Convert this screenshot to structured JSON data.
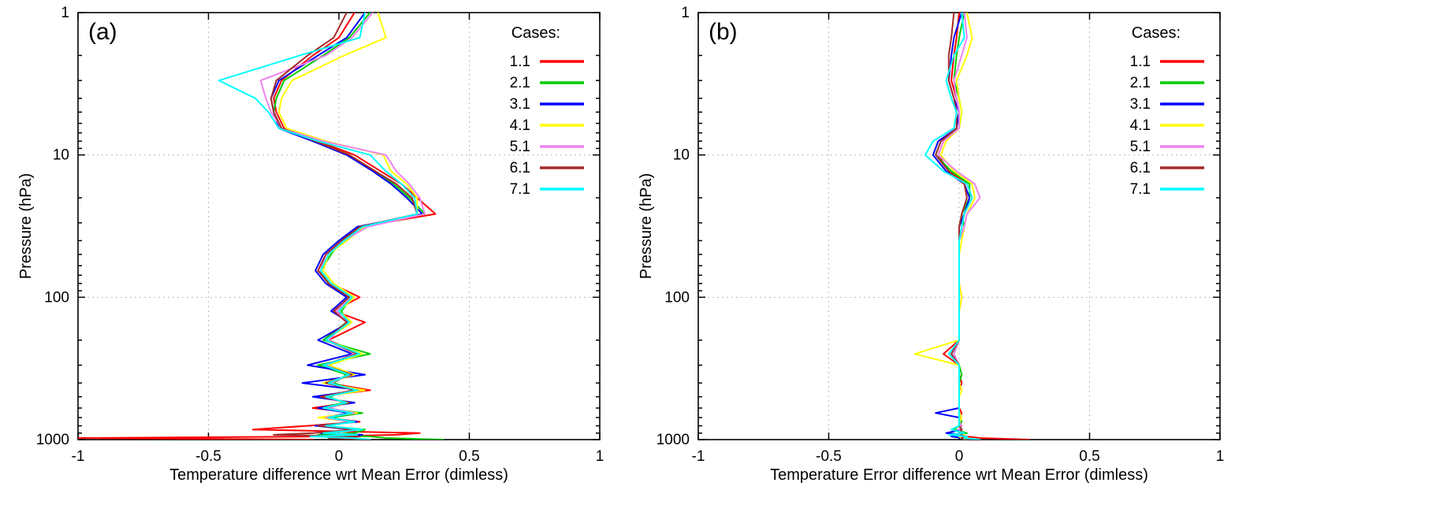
{
  "chart_data": [
    {
      "panel_id": "a",
      "panel_label": "(a)",
      "type": "line",
      "xlabel": "Temperature difference wrt Mean Error (dimless)",
      "ylabel": "Pressure (hPa)",
      "xlim": [
        -1,
        1
      ],
      "ylim": [
        1,
        1000
      ],
      "xticks": [
        -1,
        -0.5,
        0,
        0.5,
        1
      ],
      "xtick_labels": [
        "-1",
        "-0.5",
        "0",
        "0.5",
        "1"
      ],
      "yticks": [
        1,
        10,
        100,
        1000
      ],
      "ytick_labels": [
        "1",
        "10",
        "100",
        "1000"
      ],
      "layout": {
        "y_scale": "log",
        "y_inverted": true,
        "grid": true,
        "legend_position": "top-right-inside"
      },
      "legend_title": "Cases:",
      "pressure_levels": [
        1,
        1.5,
        2,
        3,
        4,
        5,
        6.5,
        8,
        10,
        13,
        16,
        20,
        26,
        32,
        40,
        50,
        65,
        80,
        100,
        125,
        150,
        200,
        250,
        300,
        350,
        400,
        450,
        500,
        550,
        600,
        650,
        700,
        750,
        800,
        850,
        900,
        925,
        950,
        975,
        1000
      ],
      "series": [
        {
          "name": "1.1",
          "color": "#ff0000",
          "values": [
            0.06,
            0.0,
            -0.1,
            -0.22,
            -0.25,
            -0.24,
            -0.21,
            -0.08,
            0.06,
            0.16,
            0.24,
            0.3,
            0.37,
            0.08,
            0.02,
            -0.05,
            -0.08,
            -0.03,
            0.08,
            -0.02,
            0.1,
            -0.04,
            0.08,
            -0.06,
            0.05,
            -0.04,
            0.12,
            -0.08,
            0.04,
            -0.1,
            0.06,
            -0.05,
            0.08,
            -0.12,
            -0.33,
            0.31,
            0.22,
            -0.05,
            -1.0,
            -0.1
          ]
        },
        {
          "name": "2.1",
          "color": "#00cc00",
          "values": [
            0.12,
            0.04,
            -0.06,
            -0.21,
            -0.24,
            -0.25,
            -0.22,
            -0.09,
            0.04,
            0.14,
            0.21,
            0.27,
            0.33,
            0.09,
            0.01,
            -0.03,
            -0.07,
            -0.04,
            0.05,
            0.01,
            0.03,
            -0.06,
            0.12,
            -0.08,
            0.03,
            -0.02,
            0.06,
            -0.04,
            0.02,
            -0.07,
            0.09,
            -0.03,
            0.05,
            -0.06,
            0.1,
            0.06,
            -0.08,
            0.12,
            0.18,
            0.4
          ]
        },
        {
          "name": "3.1",
          "color": "#0000ff",
          "values": [
            0.1,
            0.03,
            -0.08,
            -0.23,
            -0.26,
            -0.25,
            -0.23,
            -0.1,
            0.03,
            0.13,
            0.2,
            0.26,
            0.32,
            0.07,
            0.0,
            -0.06,
            -0.09,
            -0.05,
            0.03,
            -0.03,
            0.04,
            -0.08,
            0.05,
            -0.12,
            0.1,
            -0.14,
            0.08,
            -0.1,
            0.06,
            -0.08,
            0.04,
            -0.06,
            0.07,
            -0.09,
            0.05,
            -0.07,
            0.09,
            -0.04,
            0.06,
            0.02
          ]
        },
        {
          "name": "4.1",
          "color": "#ffff00",
          "values": [
            0.15,
            0.18,
            0.02,
            -0.18,
            -0.22,
            -0.23,
            -0.2,
            -0.05,
            0.17,
            0.2,
            0.26,
            0.3,
            0.3,
            0.1,
            0.03,
            -0.04,
            -0.06,
            -0.02,
            0.06,
            0.0,
            0.05,
            -0.05,
            0.09,
            -0.04,
            0.06,
            -0.06,
            0.1,
            -0.06,
            0.04,
            -0.05,
            0.07,
            -0.08,
            0.05,
            -0.07,
            0.08,
            -0.05,
            0.06,
            -0.09,
            0.04,
            0.08
          ]
        },
        {
          "name": "5.1",
          "color": "#ee82ee",
          "values": [
            0.13,
            0.05,
            -0.05,
            -0.3,
            -0.28,
            -0.26,
            -0.22,
            -0.06,
            0.18,
            0.22,
            0.27,
            0.31,
            0.33,
            0.11,
            0.02,
            -0.05,
            -0.07,
            -0.03,
            0.05,
            -0.01,
            0.03,
            -0.04,
            0.06,
            -0.05,
            0.04,
            -0.03,
            0.05,
            -0.06,
            0.03,
            -0.04,
            0.06,
            -0.05,
            0.04,
            -0.06,
            0.07,
            -0.04,
            0.05,
            -0.03,
            0.06,
            0.05
          ]
        },
        {
          "name": "6.1",
          "color": "#a52a2a",
          "values": [
            0.03,
            -0.02,
            -0.12,
            -0.24,
            -0.26,
            -0.25,
            -0.22,
            -0.09,
            0.04,
            0.14,
            0.22,
            0.28,
            0.3,
            0.08,
            0.01,
            -0.05,
            -0.08,
            -0.04,
            0.04,
            -0.02,
            0.03,
            -0.05,
            0.07,
            -0.06,
            0.05,
            -0.05,
            0.06,
            -0.07,
            0.04,
            -0.06,
            0.05,
            -0.04,
            0.06,
            -0.08,
            0.06,
            -0.1,
            -0.25,
            0.08,
            -0.04,
            0.1
          ]
        },
        {
          "name": "7.1",
          "color": "#00ffff",
          "values": [
            0.1,
            0.08,
            -0.15,
            -0.46,
            -0.32,
            -0.27,
            -0.23,
            -0.08,
            0.12,
            0.18,
            0.24,
            0.29,
            0.3,
            0.09,
            0.02,
            -0.04,
            -0.07,
            -0.03,
            0.05,
            0.0,
            0.04,
            -0.05,
            0.08,
            -0.06,
            0.04,
            -0.04,
            0.07,
            -0.05,
            0.03,
            -0.06,
            0.05,
            -0.04,
            0.06,
            -0.05,
            0.09,
            -0.06,
            0.07,
            -0.11,
            0.05,
            0.12
          ]
        }
      ]
    },
    {
      "panel_id": "b",
      "panel_label": "(b)",
      "type": "line",
      "xlabel": "Temperature Error difference wrt Mean Error (dimless)",
      "ylabel": "Pressure (hPa)",
      "xlim": [
        -1,
        1
      ],
      "ylim": [
        1,
        1000
      ],
      "xticks": [
        -1,
        -0.5,
        0,
        0.5,
        1
      ],
      "xtick_labels": [
        "-1",
        "-0.5",
        "0",
        "0.5",
        "1"
      ],
      "yticks": [
        1,
        10,
        100,
        1000
      ],
      "ytick_labels": [
        "1",
        "10",
        "100",
        "1000"
      ],
      "layout": {
        "y_scale": "log",
        "y_inverted": true,
        "grid": true,
        "legend_position": "top-right-inside"
      },
      "legend_title": "Cases:",
      "pressure_levels": [
        1,
        1.5,
        2,
        3,
        4,
        5,
        6.5,
        8,
        10,
        13,
        16,
        20,
        26,
        32,
        40,
        50,
        65,
        80,
        100,
        125,
        150,
        200,
        250,
        300,
        350,
        400,
        450,
        500,
        550,
        600,
        650,
        700,
        750,
        800,
        850,
        900,
        925,
        950,
        975,
        1000
      ],
      "series": [
        {
          "name": "1.1",
          "color": "#ff0000",
          "values": [
            0.0,
            -0.01,
            -0.02,
            -0.03,
            -0.01,
            0.0,
            -0.01,
            -0.06,
            -0.08,
            -0.04,
            0.03,
            0.05,
            0.02,
            0.01,
            0.0,
            0.0,
            0.0,
            0.0,
            0.01,
            0.0,
            0.0,
            0.0,
            -0.06,
            0.0,
            0.0,
            0.01,
            0.0,
            0.0,
            0.0,
            0.0,
            0.01,
            0.0,
            0.0,
            0.01,
            0.0,
            0.02,
            0.01,
            0.03,
            0.08,
            0.27
          ]
        },
        {
          "name": "2.1",
          "color": "#00cc00",
          "values": [
            0.02,
            0.0,
            -0.01,
            -0.02,
            0.0,
            0.01,
            0.0,
            -0.07,
            -0.09,
            -0.03,
            0.04,
            0.04,
            0.01,
            0.02,
            0.0,
            0.0,
            0.0,
            0.0,
            0.0,
            0.0,
            0.0,
            0.0,
            -0.02,
            0.0,
            0.01,
            0.0,
            0.0,
            0.0,
            0.0,
            0.0,
            0.0,
            0.0,
            0.01,
            0.0,
            -0.02,
            0.03,
            -0.02,
            0.02,
            0.01,
            0.04
          ]
        },
        {
          "name": "3.1",
          "color": "#0000ff",
          "values": [
            0.01,
            -0.02,
            -0.03,
            -0.04,
            -0.02,
            0.0,
            -0.01,
            -0.08,
            -0.1,
            -0.05,
            0.02,
            0.04,
            0.02,
            0.0,
            0.0,
            0.0,
            0.0,
            0.0,
            0.0,
            0.0,
            0.0,
            0.0,
            -0.03,
            0.0,
            0.0,
            0.0,
            0.0,
            0.0,
            0.0,
            0.0,
            -0.09,
            0.0,
            0.0,
            0.0,
            0.01,
            -0.05,
            0.02,
            -0.03,
            0.01,
            0.02
          ]
        },
        {
          "name": "4.1",
          "color": "#ffff00",
          "values": [
            0.03,
            0.05,
            0.03,
            -0.01,
            0.0,
            0.01,
            0.0,
            -0.05,
            -0.07,
            -0.02,
            0.05,
            0.06,
            0.03,
            0.02,
            0.01,
            0.0,
            0.0,
            0.0,
            0.01,
            0.0,
            0.0,
            0.0,
            -0.17,
            0.0,
            0.0,
            0.0,
            0.01,
            0.0,
            0.0,
            0.0,
            0.0,
            0.01,
            0.0,
            0.0,
            0.01,
            0.0,
            0.02,
            0.0,
            0.01,
            0.03
          ]
        },
        {
          "name": "5.1",
          "color": "#ee82ee",
          "values": [
            0.02,
            0.03,
            0.01,
            -0.02,
            -0.01,
            0.0,
            0.0,
            -0.06,
            -0.08,
            -0.01,
            0.06,
            0.08,
            0.03,
            0.02,
            0.0,
            0.0,
            0.0,
            0.0,
            0.0,
            0.0,
            0.0,
            0.0,
            -0.02,
            0.0,
            0.0,
            0.0,
            0.0,
            0.0,
            0.0,
            0.0,
            0.0,
            0.0,
            0.0,
            0.01,
            0.0,
            0.01,
            0.0,
            0.01,
            0.02,
            0.05
          ]
        },
        {
          "name": "6.1",
          "color": "#a52a2a",
          "values": [
            -0.02,
            -0.03,
            -0.04,
            -0.04,
            -0.02,
            -0.01,
            -0.01,
            -0.07,
            -0.09,
            -0.04,
            0.02,
            0.03,
            0.01,
            0.0,
            0.0,
            0.0,
            0.0,
            0.0,
            0.0,
            0.0,
            0.0,
            0.0,
            -0.03,
            0.0,
            0.0,
            0.0,
            0.0,
            0.0,
            0.0,
            0.0,
            0.0,
            0.0,
            0.0,
            0.0,
            0.01,
            0.0,
            0.01,
            0.02,
            0.01,
            0.06
          ]
        },
        {
          "name": "7.1",
          "color": "#00ffff",
          "values": [
            0.01,
            0.02,
            -0.02,
            -0.05,
            -0.03,
            -0.01,
            -0.02,
            -0.1,
            -0.13,
            -0.06,
            0.03,
            0.05,
            0.02,
            0.01,
            0.0,
            0.0,
            0.0,
            0.0,
            0.0,
            0.0,
            0.0,
            0.0,
            -0.04,
            0.0,
            0.0,
            0.0,
            0.0,
            0.0,
            0.0,
            0.0,
            0.0,
            0.0,
            0.0,
            0.0,
            -0.03,
            0.02,
            -0.04,
            0.03,
            0.02,
            0.08
          ]
        }
      ]
    }
  ]
}
